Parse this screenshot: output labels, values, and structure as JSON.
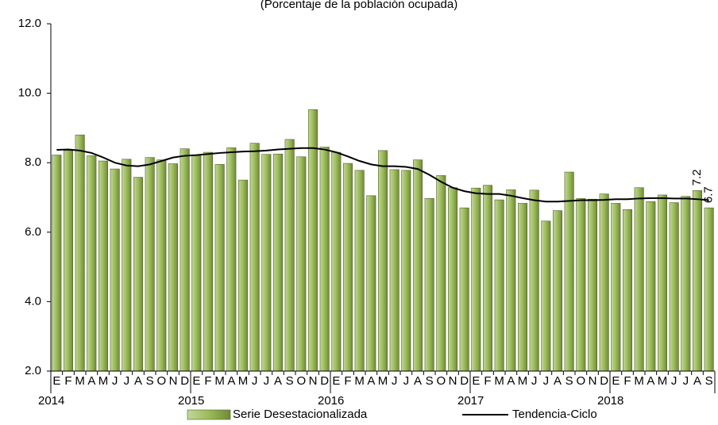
{
  "chart_data": {
    "type": "bar-line",
    "subtitle": "(Porcentaje de la población ocupada)",
    "categories": [
      "E",
      "F",
      "M",
      "A",
      "M",
      "J",
      "J",
      "A",
      "S",
      "O",
      "N",
      "D",
      "E",
      "F",
      "M",
      "A",
      "M",
      "J",
      "J",
      "A",
      "S",
      "O",
      "N",
      "D",
      "E",
      "F",
      "M",
      "A",
      "M",
      "J",
      "J",
      "A",
      "S",
      "O",
      "N",
      "D",
      "E",
      "F",
      "M",
      "A",
      "M",
      "J",
      "J",
      "A",
      "S",
      "O",
      "N",
      "D",
      "E",
      "F",
      "M",
      "A",
      "M",
      "J",
      "J",
      "A",
      "S"
    ],
    "years": [
      "2014",
      "2015",
      "2016",
      "2017",
      "2018"
    ],
    "series": [
      {
        "name": "Serie Desestacionalizada",
        "color": "#9bbb59",
        "type": "bar",
        "values": [
          8.22,
          8.35,
          8.8,
          8.2,
          8.05,
          7.82,
          8.1,
          7.58,
          8.15,
          8.08,
          7.97,
          8.4,
          8.2,
          8.3,
          7.95,
          8.43,
          7.5,
          8.56,
          8.24,
          8.25,
          8.67,
          8.17,
          9.53,
          8.45,
          8.3,
          7.98,
          7.78,
          7.05,
          8.35,
          7.8,
          7.78,
          8.08,
          6.97,
          7.63,
          7.28,
          6.7,
          7.27,
          7.35,
          6.93,
          7.22,
          6.83,
          7.21,
          6.32,
          6.62,
          7.73,
          6.97,
          6.95,
          7.1,
          6.83,
          6.65,
          7.28,
          6.88,
          7.07,
          6.85,
          7.03,
          7.2,
          6.7
        ],
        "value_labels": [
          null,
          null,
          null,
          null,
          null,
          null,
          null,
          null,
          null,
          null,
          null,
          null,
          null,
          null,
          null,
          null,
          null,
          null,
          null,
          null,
          null,
          null,
          null,
          null,
          null,
          null,
          null,
          null,
          null,
          null,
          null,
          null,
          null,
          null,
          null,
          null,
          null,
          null,
          null,
          null,
          null,
          null,
          null,
          null,
          null,
          null,
          null,
          null,
          null,
          null,
          null,
          null,
          null,
          null,
          null,
          "7.2",
          "6.7"
        ]
      },
      {
        "name": "Tendencia-Ciclo",
        "color": "#000000",
        "type": "line",
        "values": [
          8.37,
          8.38,
          8.35,
          8.28,
          8.15,
          8.0,
          7.92,
          7.9,
          7.95,
          8.05,
          8.15,
          8.2,
          8.22,
          8.25,
          8.28,
          8.3,
          8.32,
          8.33,
          8.35,
          8.38,
          8.4,
          8.42,
          8.42,
          8.38,
          8.3,
          8.18,
          8.05,
          7.95,
          7.9,
          7.9,
          7.88,
          7.82,
          7.65,
          7.45,
          7.28,
          7.18,
          7.12,
          7.1,
          7.1,
          7.05,
          6.98,
          6.92,
          6.88,
          6.88,
          6.9,
          6.92,
          6.92,
          6.93,
          6.95,
          6.95,
          6.97,
          6.98,
          6.98,
          6.97,
          6.97,
          6.95,
          6.92
        ]
      }
    ],
    "ylim": [
      2,
      12
    ],
    "yticks": [
      {
        "value": 2,
        "label": "2.0"
      },
      {
        "value": 4,
        "label": "4.0"
      },
      {
        "value": 6,
        "label": "6.0"
      },
      {
        "value": 8,
        "label": "8.0"
      },
      {
        "value": 10,
        "label": "10.0"
      },
      {
        "value": 12,
        "label": "12.0"
      }
    ]
  }
}
